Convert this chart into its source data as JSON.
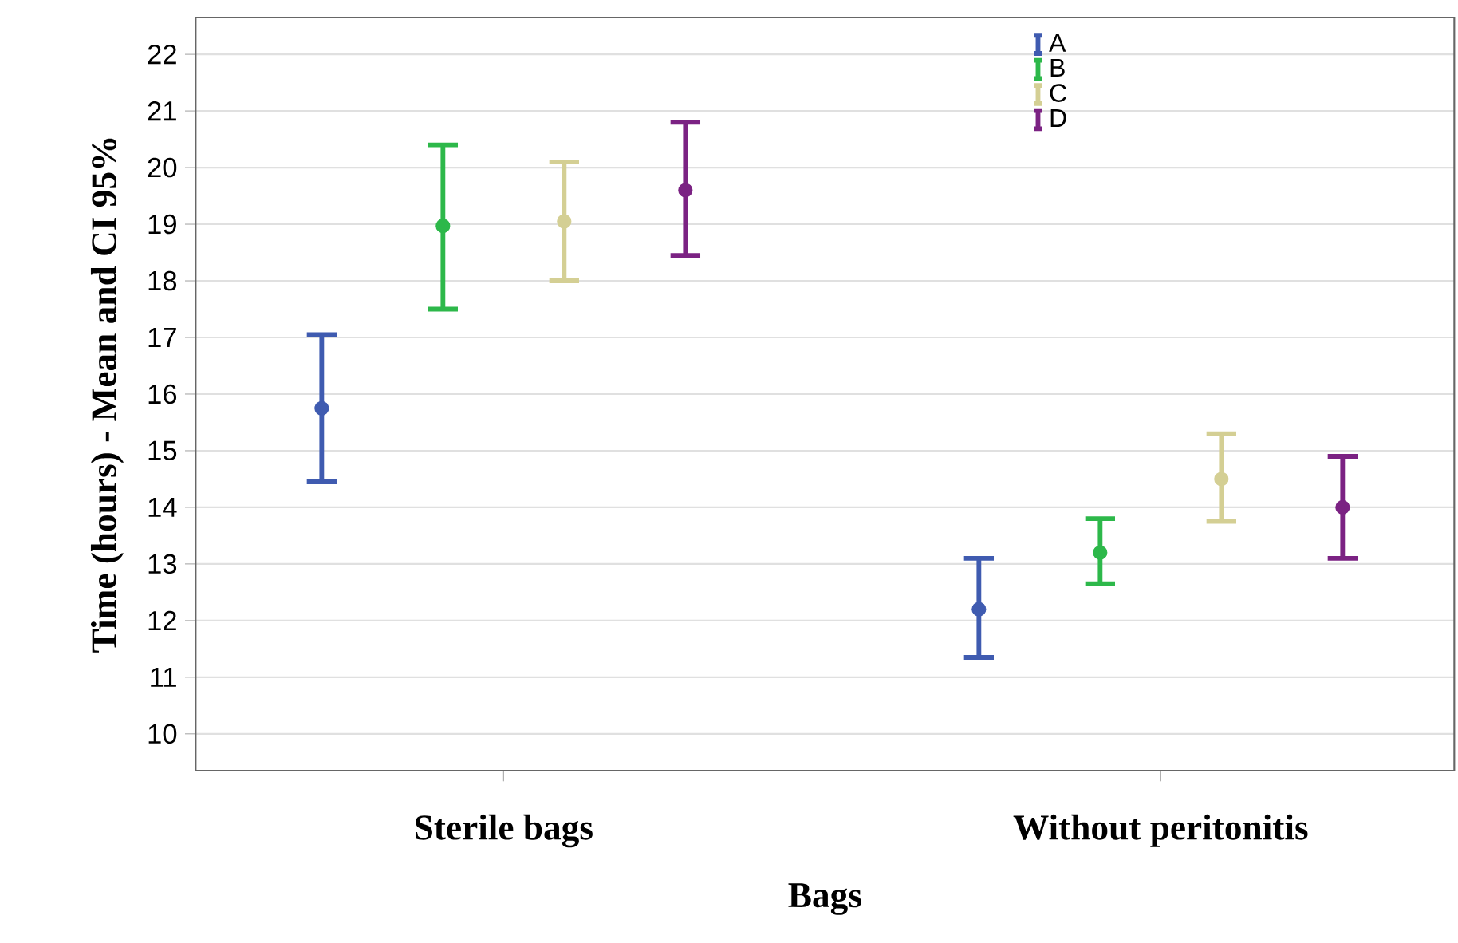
{
  "chart_data": {
    "type": "scatter",
    "xlabel": "Bags",
    "ylabel": "Time (hours) - Mean and CI 95%",
    "categories": [
      "Sterile bags",
      "Without peritonitis"
    ],
    "series": [
      {
        "name": "A",
        "color": "#3f5bb0",
        "values": [
          15.75,
          12.2
        ],
        "errors": [
          [
            14.45,
            17.05
          ],
          [
            11.35,
            13.1
          ]
        ]
      },
      {
        "name": "B",
        "color": "#2db84a",
        "values": [
          18.97,
          13.2
        ],
        "errors": [
          [
            17.5,
            20.4
          ],
          [
            12.65,
            13.8
          ]
        ]
      },
      {
        "name": "C",
        "color": "#d4cf94",
        "values": [
          19.05,
          14.5
        ],
        "errors": [
          [
            18.0,
            20.1
          ],
          [
            13.75,
            15.3
          ]
        ]
      },
      {
        "name": "D",
        "color": "#7b2283",
        "values": [
          19.6,
          14.0
        ],
        "errors": [
          [
            18.45,
            20.8
          ],
          [
            13.1,
            14.9
          ]
        ]
      }
    ],
    "ylim": [
      9.35,
      22.65
    ],
    "yticks": [
      10,
      11,
      12,
      13,
      14,
      15,
      16,
      17,
      18,
      19,
      20,
      21,
      22
    ],
    "grid": "y",
    "legend": "top",
    "marker": "circle"
  }
}
